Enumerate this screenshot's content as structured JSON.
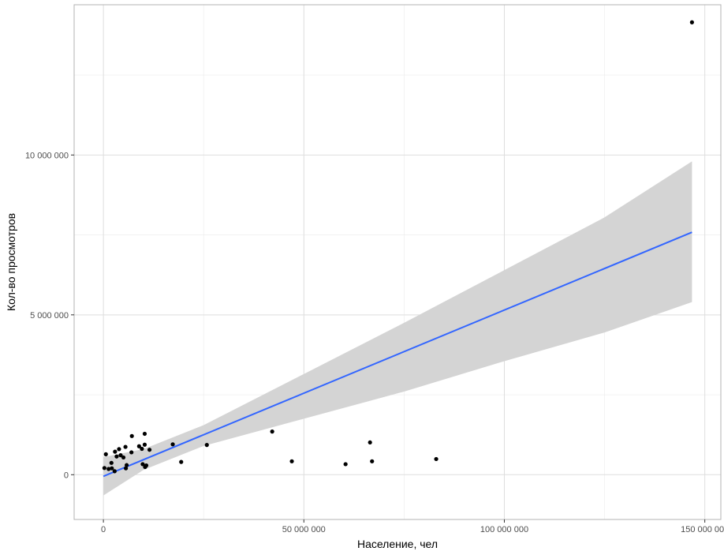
{
  "chart_data": {
    "type": "scatter",
    "title": "",
    "xlabel": "Население, чел",
    "ylabel": "Кол-во просмотров",
    "xlim": [
      -7300000,
      154000000
    ],
    "ylim": [
      -1400000,
      14700000
    ],
    "x_ticks": [
      0,
      50000000,
      100000000,
      150000000
    ],
    "x_tick_labels": [
      "0",
      "50 000 000",
      "100 000 000",
      "150 000 000"
    ],
    "y_ticks": [
      0,
      5000000,
      10000000
    ],
    "y_tick_labels": [
      "0",
      "5 000 000",
      "10 000 000"
    ],
    "x_minor_ticks": [
      25000000,
      75000000,
      125000000
    ],
    "y_minor_ticks": [
      2500000,
      7500000,
      12500000
    ],
    "grid": true,
    "legend": "none",
    "point_color": "#000000",
    "points": [
      [
        146800000,
        14150000
      ],
      [
        83000000,
        490000
      ],
      [
        67000000,
        420000
      ],
      [
        66500000,
        1010000
      ],
      [
        60400000,
        330000
      ],
      [
        47000000,
        420000
      ],
      [
        42100000,
        1350000
      ],
      [
        25800000,
        930000
      ],
      [
        19400000,
        400000
      ],
      [
        17300000,
        950000
      ],
      [
        11500000,
        780000
      ],
      [
        10700000,
        290000
      ],
      [
        10400000,
        240000
      ],
      [
        10300000,
        1280000
      ],
      [
        10300000,
        940000
      ],
      [
        9800000,
        330000
      ],
      [
        9600000,
        810000
      ],
      [
        8900000,
        890000
      ],
      [
        7100000,
        1210000
      ],
      [
        7000000,
        700000
      ],
      [
        5800000,
        300000
      ],
      [
        5600000,
        200000
      ],
      [
        5500000,
        870000
      ],
      [
        5000000,
        540000
      ],
      [
        4300000,
        610000
      ],
      [
        3900000,
        800000
      ],
      [
        3300000,
        570000
      ],
      [
        2900000,
        720000
      ],
      [
        2800000,
        110000
      ],
      [
        2100000,
        200000
      ],
      [
        2000000,
        370000
      ],
      [
        1300000,
        180000
      ],
      [
        620000,
        640000
      ],
      [
        250000,
        210000
      ]
    ],
    "trend": {
      "type": "linear",
      "color": "#3366ff",
      "x_range": [
        0,
        146800000
      ],
      "intercept": -50000,
      "slope": 0.052,
      "ci_band_color": "#d4d4d4",
      "ci": [
        {
          "x": 0,
          "low": -650000,
          "high": 550000
        },
        {
          "x": 10000000,
          "low": 150000,
          "high": 800000
        },
        {
          "x": 25000000,
          "low": 900000,
          "high": 1550000
        },
        {
          "x": 50000000,
          "low": 1750000,
          "high": 3150000
        },
        {
          "x": 75000000,
          "low": 2600000,
          "high": 4750000
        },
        {
          "x": 100000000,
          "low": 3550000,
          "high": 6400000
        },
        {
          "x": 125000000,
          "low": 4450000,
          "high": 8050000
        },
        {
          "x": 146800000,
          "low": 5400000,
          "high": 9800000
        }
      ]
    }
  }
}
